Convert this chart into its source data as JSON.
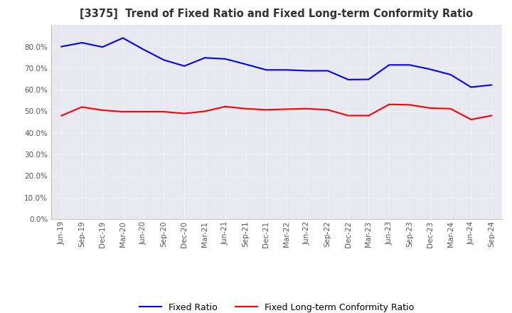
{
  "title": "[3375]  Trend of Fixed Ratio and Fixed Long-term Conformity Ratio",
  "x_labels": [
    "Jun-19",
    "Sep-19",
    "Dec-19",
    "Mar-20",
    "Jun-20",
    "Sep-20",
    "Dec-20",
    "Mar-21",
    "Jun-21",
    "Sep-21",
    "Dec-21",
    "Mar-22",
    "Jun-22",
    "Sep-22",
    "Dec-22",
    "Mar-23",
    "Jun-23",
    "Sep-23",
    "Dec-23",
    "Mar-24",
    "Jun-24",
    "Sep-24"
  ],
  "fixed_ratio": [
    0.8,
    0.818,
    0.798,
    0.84,
    0.787,
    0.738,
    0.71,
    0.748,
    0.743,
    0.718,
    0.692,
    0.692,
    0.688,
    0.688,
    0.647,
    0.648,
    0.715,
    0.715,
    0.695,
    0.67,
    0.612,
    0.622
  ],
  "fixed_lt_ratio": [
    0.48,
    0.52,
    0.505,
    0.498,
    0.498,
    0.498,
    0.49,
    0.5,
    0.522,
    0.512,
    0.507,
    0.51,
    0.512,
    0.507,
    0.48,
    0.48,
    0.532,
    0.53,
    0.515,
    0.512,
    0.462,
    0.48
  ],
  "fixed_ratio_color": "#0000ff",
  "fixed_lt_ratio_color": "#ff0000",
  "ylim": [
    0.0,
    0.9
  ],
  "yticks": [
    0.0,
    0.1,
    0.2,
    0.3,
    0.4,
    0.5,
    0.6,
    0.7,
    0.8
  ],
  "legend_fixed": "Fixed Ratio",
  "legend_fixed_lt": "Fixed Long-term Conformity Ratio",
  "background_color": "#ffffff",
  "plot_bg_color": "#e8e8f0",
  "grid_color": "#ffffff"
}
